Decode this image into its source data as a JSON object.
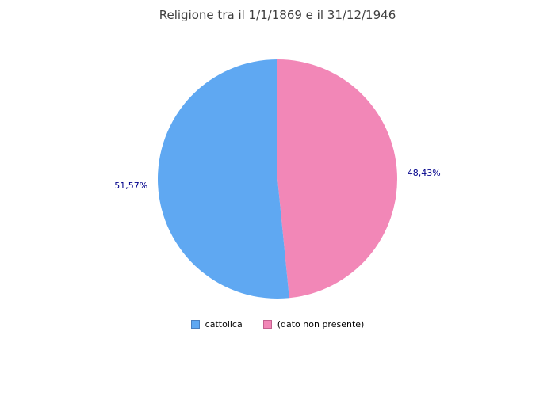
{
  "title": "Religione tra il 1/1/1869 e il 31/12/1946",
  "chart_data": {
    "type": "pie",
    "title": "Religione tra il 1/1/1869 e il 31/12/1946",
    "slices": [
      {
        "label": "cattolica",
        "value": 51.57,
        "pct_label": "51,57%",
        "color": "#5FA8F2",
        "border_color": "#4A7FBF"
      },
      {
        "label": "(dato non presente)",
        "value": 48.43,
        "pct_label": "48,43%",
        "color": "#F287B7",
        "border_color": "#C4618F"
      }
    ],
    "start_angle": "top",
    "direction": "counter-clockwise",
    "label_color": "#00008B",
    "legend_position": "bottom"
  },
  "colors": {
    "background": "#FFFFFF",
    "title_text": "#3F3F3F",
    "percent_label": "#00008B",
    "legend_text": "#000000"
  }
}
